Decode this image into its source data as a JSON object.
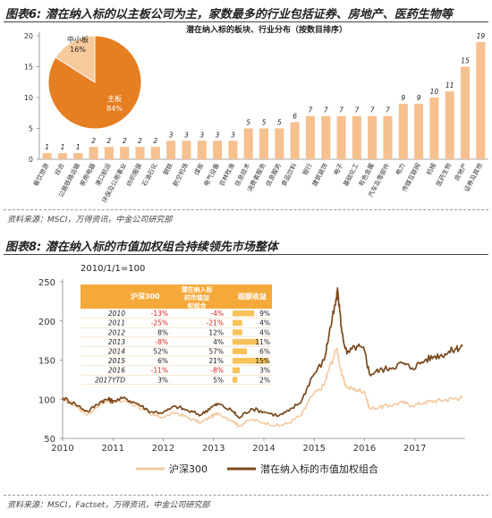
{
  "figure6": {
    "title": "图表6: 潜在纳入标的以主板公司为主，家数最多的行业包括证券、房地产、医药生物等",
    "source": "资料来源：MSCI，万得资讯，中金公司研究部"
  },
  "figure8": {
    "title": "图表8: 潜在纳入标的市值加权组合持续领先市场整体",
    "source": "资料来源：MSCI，Factset，万得资讯，中金公司研究部"
  },
  "colors": {
    "bar": "#f6c08f",
    "pie_main": "#e67e22",
    "pie_small": "#f8c99a",
    "hs300": "#f3c9a0",
    "portfolio": "#7a4a1e",
    "red": "#e0201b"
  },
  "chart_data": [
    {
      "type": "bar",
      "title": "潜在纳入标的板块、行业分布（按数目排序）",
      "ylim": [
        0,
        20
      ],
      "yticks": [
        0,
        5,
        10,
        15,
        20
      ],
      "categories": [
        "餐饮旅游",
        "综合",
        "公路铁路运输",
        "家用电器",
        "港口航运",
        "环保及公用事业",
        "纺织服装",
        "石油石化",
        "钢铁",
        "航空机场",
        "煤炭",
        "电气设备",
        "农林牧渔",
        "信息技术",
        "消费者服务",
        "信息服务",
        "食品饮料",
        "银行",
        "建筑装饰",
        "电子",
        "基础化工",
        "有色金属",
        "汽车及零部件",
        "电力",
        "传媒互联网",
        "机械",
        "医药生物",
        "房地产",
        "证券及其他"
      ],
      "values": [
        1,
        1,
        1,
        2,
        2,
        2,
        2,
        2,
        3,
        3,
        3,
        3,
        3,
        5,
        5,
        5,
        6,
        7,
        7,
        7,
        7,
        7,
        7,
        9,
        9,
        10,
        11,
        15,
        19
      ],
      "inset_pie": {
        "type": "pie",
        "labels": [
          "主板",
          "中小板"
        ],
        "values": [
          84,
          16
        ],
        "value_labels": [
          "84%",
          "16%"
        ]
      }
    },
    {
      "type": "line",
      "title": "2010/1/1=100",
      "ylim": [
        50,
        250
      ],
      "yticks": [
        50,
        100,
        150,
        200,
        250
      ],
      "xticks": [
        "2010",
        "2011",
        "2012",
        "2013",
        "2014",
        "2015",
        "2016",
        "2017"
      ],
      "series": [
        {
          "name": "沪深300",
          "points": [
            [
              2010.0,
              100
            ],
            [
              2010.25,
              92
            ],
            [
              2010.5,
              80
            ],
            [
              2010.75,
              95
            ],
            [
              2010.9,
              98
            ],
            [
              2011.0,
              96
            ],
            [
              2011.25,
              98
            ],
            [
              2011.5,
              91
            ],
            [
              2011.75,
              80
            ],
            [
              2012.0,
              77
            ],
            [
              2012.25,
              83
            ],
            [
              2012.5,
              76
            ],
            [
              2012.75,
              70
            ],
            [
              2012.95,
              78
            ],
            [
              2013.1,
              82
            ],
            [
              2013.4,
              72
            ],
            [
              2013.5,
              66
            ],
            [
              2013.75,
              74
            ],
            [
              2014.0,
              70
            ],
            [
              2014.3,
              66
            ],
            [
              2014.5,
              70
            ],
            [
              2014.75,
              80
            ],
            [
              2014.95,
              104
            ],
            [
              2015.2,
              118
            ],
            [
              2015.3,
              140
            ],
            [
              2015.45,
              165
            ],
            [
              2015.55,
              130
            ],
            [
              2015.65,
              115
            ],
            [
              2015.85,
              112
            ],
            [
              2016.0,
              110
            ],
            [
              2016.1,
              88
            ],
            [
              2016.3,
              90
            ],
            [
              2016.5,
              92
            ],
            [
              2016.75,
              96
            ],
            [
              2016.95,
              92
            ],
            [
              2017.2,
              96
            ],
            [
              2017.4,
              98
            ],
            [
              2017.6,
              99
            ],
            [
              2017.8,
              101
            ],
            [
              2017.95,
              102
            ]
          ]
        },
        {
          "name": "潜在纳入标的市值加权组合",
          "points": [
            [
              2010.0,
              102
            ],
            [
              2010.25,
              94
            ],
            [
              2010.5,
              84
            ],
            [
              2010.75,
              97
            ],
            [
              2010.9,
              100
            ],
            [
              2011.0,
              98
            ],
            [
              2011.25,
              101
            ],
            [
              2011.5,
              94
            ],
            [
              2011.75,
              84
            ],
            [
              2012.0,
              83
            ],
            [
              2012.25,
              91
            ],
            [
              2012.5,
              85
            ],
            [
              2012.75,
              80
            ],
            [
              2012.95,
              90
            ],
            [
              2013.1,
              94
            ],
            [
              2013.4,
              84
            ],
            [
              2013.5,
              76
            ],
            [
              2013.75,
              88
            ],
            [
              2014.0,
              84
            ],
            [
              2014.3,
              79
            ],
            [
              2014.5,
              85
            ],
            [
              2014.75,
              98
            ],
            [
              2014.95,
              128
            ],
            [
              2015.2,
              150
            ],
            [
              2015.3,
              185
            ],
            [
              2015.42,
              220
            ],
            [
              2015.47,
              238
            ],
            [
              2015.55,
              185
            ],
            [
              2015.65,
              158
            ],
            [
              2015.85,
              168
            ],
            [
              2016.0,
              162
            ],
            [
              2016.1,
              132
            ],
            [
              2016.3,
              137
            ],
            [
              2016.5,
              140
            ],
            [
              2016.75,
              146
            ],
            [
              2016.95,
              140
            ],
            [
              2017.2,
              150
            ],
            [
              2017.4,
              155
            ],
            [
              2017.6,
              158
            ],
            [
              2017.8,
              164
            ],
            [
              2017.95,
              168
            ]
          ]
        }
      ],
      "inset_table": {
        "headers": [
          "",
          "沪深300",
          "潜在纳入标的市值加权组合",
          "超额收益"
        ],
        "rows": [
          {
            "year": "2010",
            "hs300": "-13%",
            "portfolio": "-4%",
            "excess": "9%",
            "excess_value": 9
          },
          {
            "year": "2011",
            "hs300": "-25%",
            "portfolio": "-21%",
            "excess": "4%",
            "excess_value": 4
          },
          {
            "year": "2012",
            "hs300": "8%",
            "portfolio": "12%",
            "excess": "4%",
            "excess_value": 4
          },
          {
            "year": "2013",
            "hs300": "-8%",
            "portfolio": "4%",
            "excess": "11%",
            "excess_value": 11
          },
          {
            "year": "2014",
            "hs300": "52%",
            "portfolio": "57%",
            "excess": "6%",
            "excess_value": 6
          },
          {
            "year": "2015",
            "hs300": "6%",
            "portfolio": "21%",
            "excess": "15%",
            "excess_value": 15
          },
          {
            "year": "2016",
            "hs300": "-11%",
            "portfolio": "-8%",
            "excess": "3%",
            "excess_value": 3
          },
          {
            "year": "2017YTD",
            "hs300": "3%",
            "portfolio": "5%",
            "excess": "2%",
            "excess_value": 2
          }
        ]
      }
    }
  ]
}
